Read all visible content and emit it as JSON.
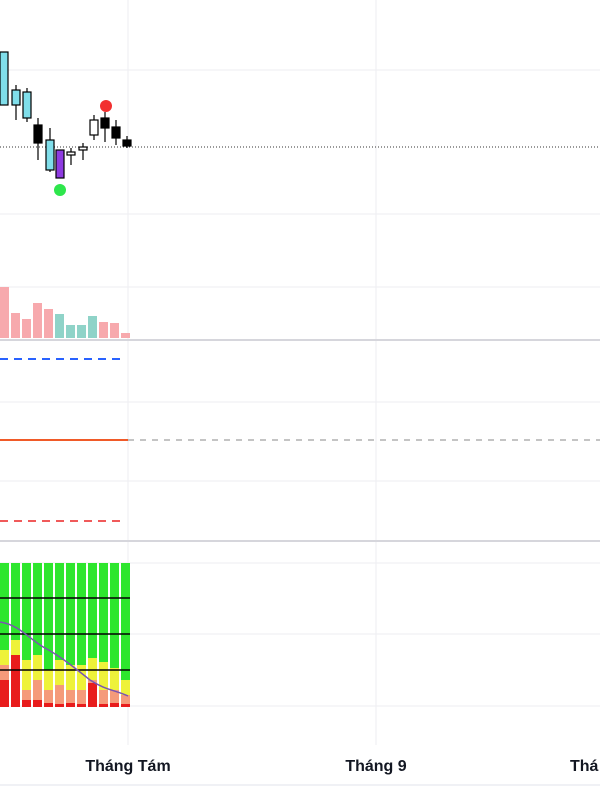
{
  "x_axis": {
    "labels": [
      "Tháng Tám",
      "Tháng 9",
      "Thá"
    ]
  }
}
